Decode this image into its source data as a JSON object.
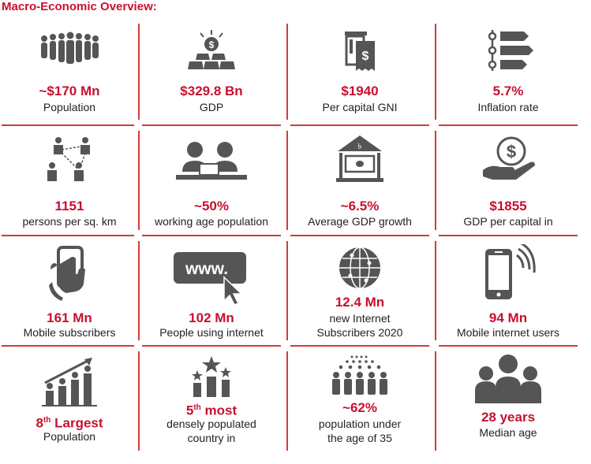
{
  "title": "Macro-Economic Overview:",
  "accent_color": "#c8102e",
  "icon_color": "#555555",
  "tiles": [
    {
      "icon": "crowd-icon",
      "value": "~$170 Mn",
      "label": "Population"
    },
    {
      "icon": "gold-bars-icon",
      "value": "$329.8 Bn",
      "label": "GDP"
    },
    {
      "icon": "receipt-icon",
      "value": "$1940",
      "label": "Per capital GNI"
    },
    {
      "icon": "timeline-icon",
      "value": "5.7%",
      "label": "Inflation rate"
    },
    {
      "icon": "network-people-icon",
      "value": "1151",
      "label": "persons per sq. km"
    },
    {
      "icon": "workers-icon",
      "value": "~50%",
      "label": "working age population"
    },
    {
      "icon": "bank-note-house-icon",
      "value": "~6.5%",
      "label": "Average GDP growth"
    },
    {
      "icon": "hand-coin-icon",
      "value": "$1855",
      "label": "GDP per capital in"
    },
    {
      "icon": "smartphone-hand-icon",
      "value": "161 Mn",
      "label": "Mobile subscribers"
    },
    {
      "icon": "www-cursor-icon",
      "value": "102 Mn",
      "label": "People using internet"
    },
    {
      "icon": "globe-icon",
      "value": "12.4 Mn",
      "label_line1": "new Internet",
      "label_line2": "Subscribers 2020"
    },
    {
      "icon": "phone-signal-icon",
      "value": "94 Mn",
      "label": "Mobile internet users"
    },
    {
      "icon": "growth-bars-icon",
      "value_main": "8",
      "value_sup": "th",
      "value_rest": " Largest",
      "label": "Population"
    },
    {
      "icon": "star-podium-icon",
      "value_main": "5",
      "value_sup": "th",
      "value_rest": " most",
      "label_line1": "densely populated",
      "label_line2": "country in"
    },
    {
      "icon": "group-icon",
      "value": "~62%",
      "label_line1": "population under",
      "label_line2": "the age of 35"
    },
    {
      "icon": "team-icon",
      "value": "28 years",
      "label": "Median age"
    }
  ]
}
